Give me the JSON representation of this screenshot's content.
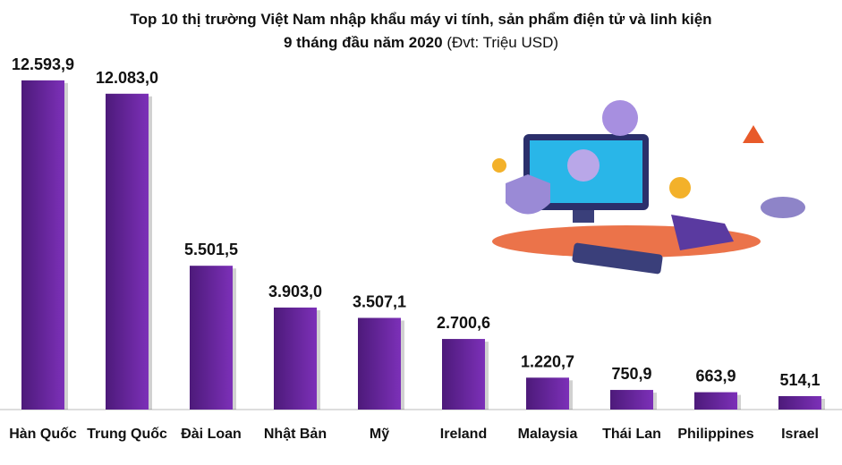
{
  "chart_data": {
    "type": "bar",
    "title": "Top 10 thị trường Việt Nam nhập khẩu máy vi tính, sản phẩm điện tử và linh kiện",
    "subtitle": "9 tháng đầu năm 2020",
    "unit": "(Đvt: Triệu USD)",
    "categories": [
      "Hàn Quốc",
      "Trung Quốc",
      "Đài Loan",
      "Nhật Bản",
      "Mỹ",
      "Ireland",
      "Malaysia",
      "Thái Lan",
      "Philippines",
      "Israel"
    ],
    "values": [
      12593.9,
      12083.0,
      5501.5,
      3903.0,
      3507.1,
      2700.6,
      1220.7,
      750.9,
      663.9,
      514.1
    ],
    "value_labels": [
      "12.593,9",
      "12.083,0",
      "5.501,5",
      "3.903,0",
      "3.507,1",
      "2.700,6",
      "1.220,7",
      "750,9",
      "663,9",
      "514,1"
    ],
    "color": "#6a27a3",
    "ylim": [
      0,
      13000
    ]
  }
}
